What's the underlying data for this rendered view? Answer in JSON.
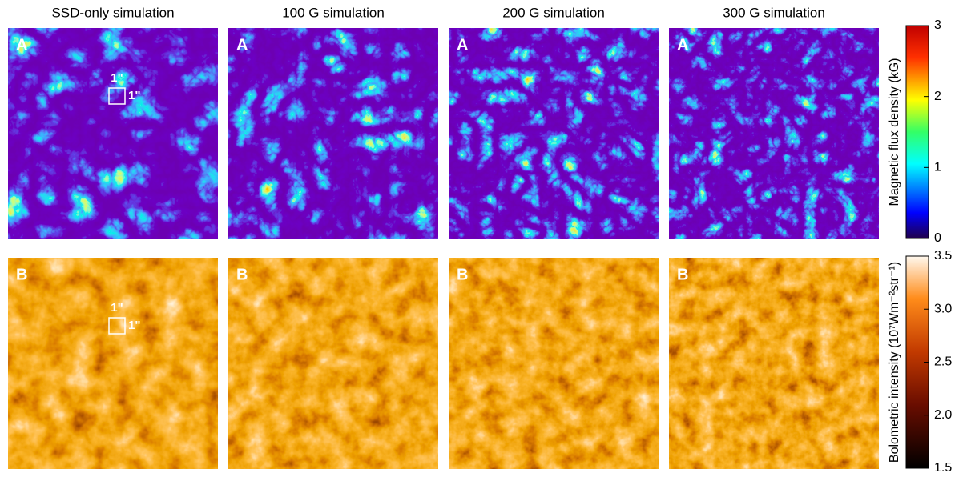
{
  "columns": [
    {
      "title": "SSD-only simulation"
    },
    {
      "title": "100 G simulation"
    },
    {
      "title": "200 G simulation"
    },
    {
      "title": "300 G simulation"
    }
  ],
  "panel_labels": [
    [
      "A",
      "A",
      "A",
      "A"
    ],
    [
      "B",
      "B",
      "B",
      "B"
    ]
  ],
  "scale_box": {
    "top_label": "1\"",
    "side_label": "1\""
  },
  "colorbars": [
    {
      "label": "Magnetic flux density (kG)",
      "ticks": [
        "0",
        "1",
        "2",
        "3"
      ]
    },
    {
      "label": "Bolometric intensity (10⁷Wm⁻²str⁻¹)",
      "ticks": [
        "1.5",
        "2.0",
        "2.5",
        "3.0",
        "3.5"
      ]
    }
  ]
}
